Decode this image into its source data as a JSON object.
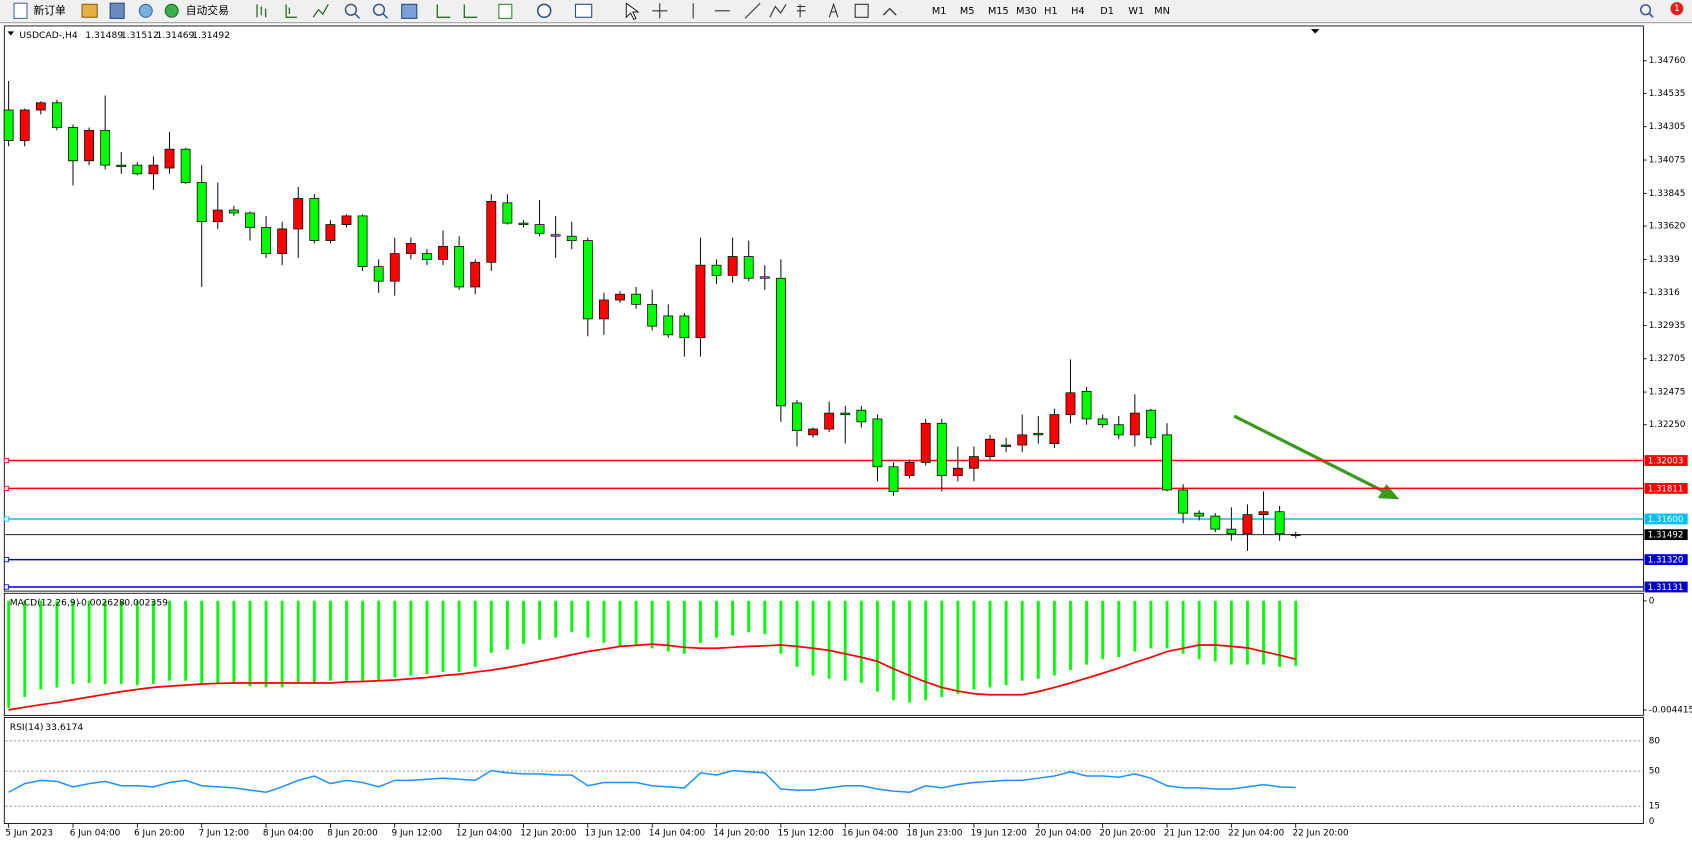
{
  "toolbar": {
    "new_order": "新订单",
    "auto_trading": "自动交易",
    "timeframes": [
      "M1",
      "M5",
      "M15",
      "M30",
      "H1",
      "H4",
      "D1",
      "W1",
      "MN"
    ],
    "alerts": "1"
  },
  "chart_data": [
    {
      "type": "candlestick",
      "symbol": "USDCAD-,H4",
      "categories": [
        "5 Jun 2023",
        null,
        null,
        null,
        "6 Jun 04:00",
        null,
        null,
        null,
        "6 Jun 20:00",
        null,
        null,
        null,
        "7 Jun 12:00",
        null,
        null,
        null,
        "8 Jun 04:00",
        null,
        null,
        null,
        "8 Jun 20:00",
        null,
        null,
        null,
        "9 Jun 12:00",
        null,
        null,
        null,
        "12 Jun 04:00",
        null,
        null,
        null,
        "12 Jun 20:00",
        null,
        null,
        null,
        "13 Jun 12:00",
        null,
        null,
        null,
        "14 Jun 04:00",
        null,
        null,
        null,
        "14 Jun 20:00",
        null,
        null,
        null,
        "15 Jun 12:00",
        null,
        null,
        null,
        "16 Jun 04:00",
        null,
        null,
        null,
        "18 Jun 23:00",
        null,
        null,
        null,
        "19 Jun 12:00",
        null,
        null,
        null,
        "20 Jun 04:00",
        null,
        null,
        null,
        "20 Jun 20:00",
        null,
        null,
        null,
        "21 Jun 12:00",
        null,
        null,
        null,
        "22 Jun 04:00",
        null,
        null,
        null,
        "22 Jun 20:00"
      ],
      "open": [
        1.3442,
        1.3421,
        1.3442,
        1.3447,
        1.343,
        1.3407,
        1.3428,
        1.3404,
        1.3404,
        1.3398,
        1.3402,
        1.3415,
        1.3392,
        1.3365,
        1.3373,
        1.3371,
        1.3361,
        1.3343,
        1.336,
        1.3381,
        1.3352,
        1.3363,
        1.3369,
        1.3334,
        1.3324,
        1.3343,
        1.3343,
        1.3339,
        1.3348,
        1.332,
        1.3337,
        1.3378,
        1.3364,
        1.3363,
        1.3356,
        1.3355,
        1.3352,
        1.3298,
        1.3311,
        1.3315,
        1.3308,
        1.33,
        1.33,
        1.3285,
        1.3335,
        1.3328,
        1.3341,
        1.3327,
        1.3326,
        1.324,
        1.3218,
        1.3222,
        1.3233,
        1.3235,
        1.3229,
        1.3196,
        1.319,
        1.3199,
        1.3226,
        1.319,
        1.3195,
        1.3203,
        1.321,
        1.3211,
        1.3219,
        1.3212,
        1.3232,
        1.3248,
        1.3229,
        1.3225,
        1.3218,
        1.3235,
        1.3218,
        1.318,
        1.3164,
        1.3162,
        1.3153,
        1.315,
        1.3163,
        1.3165,
        1.31489
      ],
      "high": [
        1.3462,
        1.3443,
        1.3448,
        1.3449,
        1.3432,
        1.343,
        1.3452,
        1.3413,
        1.3406,
        1.341,
        1.3427,
        1.3416,
        1.3404,
        1.3392,
        1.3376,
        1.3372,
        1.3369,
        1.3365,
        1.3389,
        1.3384,
        1.3366,
        1.337,
        1.337,
        1.3339,
        1.3354,
        1.3354,
        1.3346,
        1.3359,
        1.3355,
        1.3339,
        1.3384,
        1.3384,
        1.3366,
        1.338,
        1.3369,
        1.3365,
        1.3354,
        1.3316,
        1.3317,
        1.332,
        1.3318,
        1.3308,
        1.3302,
        1.3354,
        1.3339,
        1.3354,
        1.3352,
        1.3335,
        1.3339,
        1.3242,
        1.3223,
        1.3241,
        1.3238,
        1.3238,
        1.3232,
        1.3199,
        1.3201,
        1.3229,
        1.3229,
        1.321,
        1.321,
        1.3218,
        1.3216,
        1.3232,
        1.3231,
        1.3236,
        1.327,
        1.3251,
        1.3232,
        1.3231,
        1.3246,
        1.3236,
        1.3226,
        1.3184,
        1.3166,
        1.3164,
        1.3168,
        1.317,
        1.3179,
        1.3169,
        1.31512
      ],
      "low": [
        1.3417,
        1.3417,
        1.3439,
        1.3428,
        1.339,
        1.3404,
        1.3401,
        1.3398,
        1.3397,
        1.3387,
        1.3398,
        1.3391,
        1.332,
        1.336,
        1.3369,
        1.3352,
        1.334,
        1.3335,
        1.334,
        1.335,
        1.335,
        1.3361,
        1.3331,
        1.3316,
        1.3314,
        1.3339,
        1.3335,
        1.3335,
        1.3318,
        1.3315,
        1.3331,
        1.3363,
        1.3361,
        1.3355,
        1.334,
        1.3346,
        1.3286,
        1.3287,
        1.3309,
        1.3305,
        1.329,
        1.3285,
        1.3272,
        1.3272,
        1.3322,
        1.3323,
        1.3324,
        1.3318,
        1.3227,
        1.321,
        1.3216,
        1.322,
        1.3212,
        1.3223,
        1.3186,
        1.3176,
        1.3188,
        1.3197,
        1.3179,
        1.3186,
        1.3186,
        1.3201,
        1.3206,
        1.3206,
        1.3212,
        1.3209,
        1.3226,
        1.3225,
        1.3223,
        1.3215,
        1.321,
        1.3211,
        1.3179,
        1.3157,
        1.3159,
        1.3151,
        1.3145,
        1.3138,
        1.3149,
        1.3145,
        1.31469
      ],
      "close": [
        1.3421,
        1.3442,
        1.3447,
        1.343,
        1.3407,
        1.3428,
        1.3404,
        1.3403,
        1.3398,
        1.3404,
        1.3415,
        1.3392,
        1.3365,
        1.3373,
        1.3371,
        1.3361,
        1.3343,
        1.336,
        1.3381,
        1.3352,
        1.3363,
        1.3369,
        1.3334,
        1.3324,
        1.3343,
        1.335,
        1.3339,
        1.3348,
        1.332,
        1.3337,
        1.3379,
        1.3364,
        1.3363,
        1.3357,
        1.3355,
        1.3352,
        1.3298,
        1.3311,
        1.3315,
        1.3308,
        1.3293,
        1.3287,
        1.3285,
        1.3335,
        1.3328,
        1.3341,
        1.3326,
        1.3326,
        1.3238,
        1.3221,
        1.3222,
        1.3233,
        1.3232,
        1.3227,
        1.3196,
        1.3179,
        1.3199,
        1.3226,
        1.319,
        1.3195,
        1.3203,
        1.3215,
        1.3211,
        1.3218,
        1.3218,
        1.3232,
        1.3247,
        1.3229,
        1.3225,
        1.3218,
        1.3233,
        1.3216,
        1.318,
        1.3164,
        1.3162,
        1.3153,
        1.315,
        1.3163,
        1.3165,
        1.315,
        1.31492
      ],
      "up_color": "#ff0000",
      "down_color": "#00ff00",
      "ylim": [
        1.3111,
        1.3497
      ],
      "yticks": [
        {
          "value": 1.3476,
          "label": "1.34760"
        },
        1.34535,
        1.34305,
        1.34075,
        1.33845,
        {
          "value": 1.3362,
          "label": "1.33620"
        },
        1.3339,
        1.3316,
        1.32935,
        1.32705,
        1.32475,
        {
          "value": 1.3225,
          "label": "1.32250"
        }
      ],
      "levels": {
        "values": [
          1.32003,
          1.31811,
          1.316,
          1.31492,
          1.3132,
          1.31131
        ],
        "value_labels": [
          "1.32003",
          "1.31811",
          "1.31600",
          "1.31492",
          "1.31320",
          "1.31131"
        ],
        "colors": [
          "#ff0000",
          "#ff0000",
          "#00bfff",
          "#000000",
          "#0000cd",
          "#0000cd"
        ]
      }
    },
    {
      "type": "macd",
      "name": "MACD(12,26,9)",
      "histogram": {
        "color": "#00ff00",
        "values": [
          -0.00433,
          -0.00389,
          -0.00358,
          -0.0035,
          -0.00336,
          -0.00332,
          -0.00336,
          -0.00336,
          -0.00341,
          -0.00336,
          -0.00323,
          -0.00323,
          -0.00336,
          -0.00336,
          -0.00336,
          -0.00345,
          -0.0035,
          -0.0035,
          -0.00336,
          -0.00336,
          -0.00323,
          -0.00323,
          -0.00323,
          -0.00323,
          -0.0031,
          -0.00302,
          -0.00297,
          -0.00288,
          -0.00288,
          -0.00267,
          -0.0021,
          -0.00197,
          -0.00175,
          -0.00157,
          -0.00149,
          -0.00127,
          -0.00149,
          -0.0017,
          -0.00184,
          -0.00184,
          -0.00192,
          -0.00205,
          -0.00214,
          -0.0017,
          -0.00149,
          -0.0014,
          -0.00127,
          -0.00135,
          -0.00214,
          -0.00267,
          -0.00302,
          -0.00315,
          -0.00323,
          -0.00332,
          -0.00367,
          -0.00402,
          -0.00411,
          -0.00402,
          -0.00389,
          -0.00376,
          -0.00358,
          -0.0035,
          -0.00341,
          -0.00323,
          -0.00315,
          -0.00302,
          -0.0028,
          -0.00258,
          -0.00236,
          -0.00227,
          -0.00205,
          -0.00192,
          -0.00192,
          -0.00214,
          -0.00236,
          -0.00245,
          -0.00258,
          -0.00258,
          -0.00258,
          -0.00267,
          -0.002628
        ]
      },
      "signal": {
        "color": "#ff0000",
        "values": [
          -0.00441,
          -0.0043,
          -0.0042,
          -0.00411,
          -0.004,
          -0.00389,
          -0.00378,
          -0.00367,
          -0.00358,
          -0.0035,
          -0.00345,
          -0.00341,
          -0.00336,
          -0.00334,
          -0.00332,
          -0.00332,
          -0.00332,
          -0.00332,
          -0.00332,
          -0.00332,
          -0.00332,
          -0.00328,
          -0.00326,
          -0.00323,
          -0.0032,
          -0.00315,
          -0.0031,
          -0.00302,
          -0.00297,
          -0.00288,
          -0.0028,
          -0.0027,
          -0.00258,
          -0.00245,
          -0.00232,
          -0.00218,
          -0.00205,
          -0.00195,
          -0.00184,
          -0.0018,
          -0.00175,
          -0.0018,
          -0.00188,
          -0.00192,
          -0.00192,
          -0.00188,
          -0.00184,
          -0.00182,
          -0.00179,
          -0.00184,
          -0.00192,
          -0.002,
          -0.00214,
          -0.00228,
          -0.00245,
          -0.00275,
          -0.00302,
          -0.00328,
          -0.0035,
          -0.00365,
          -0.00376,
          -0.0038,
          -0.0038,
          -0.0038,
          -0.00367,
          -0.0035,
          -0.00332,
          -0.00313,
          -0.00293,
          -0.00272,
          -0.00249,
          -0.00228,
          -0.00205,
          -0.00192,
          -0.00179,
          -0.00179,
          -0.00184,
          -0.0019,
          -0.00205,
          -0.0022,
          -0.002359
        ]
      },
      "ylim": [
        -0.004415,
        0
      ],
      "yticks": [
        0,
        -0.004415
      ]
    },
    {
      "type": "rsi",
      "name": "RSI(14)",
      "color": "#1e90ff",
      "values": [
        28.9,
        37.5,
        40.7,
        39.7,
        34.3,
        37.5,
        39.7,
        35.4,
        35.4,
        34.3,
        38.6,
        40.7,
        35.4,
        34.3,
        33.2,
        31.1,
        28.9,
        34.3,
        40.7,
        45,
        37.5,
        40.7,
        38.6,
        34.3,
        40.7,
        40.7,
        41.8,
        42.9,
        41.8,
        40.7,
        50.4,
        48.2,
        47.2,
        47.2,
        46.1,
        46.1,
        35.4,
        38.6,
        38.6,
        38.6,
        35.4,
        34.3,
        33.2,
        48.2,
        46.1,
        50.4,
        49.3,
        48.2,
        32.2,
        31.1,
        31.1,
        33.2,
        35.4,
        35.4,
        32.2,
        30,
        28.9,
        35.4,
        33.2,
        36.4,
        38.6,
        39.7,
        40.7,
        40.7,
        42.9,
        45,
        49.3,
        45,
        45,
        43.9,
        47.2,
        42.9,
        35.4,
        33.2,
        33.2,
        32.2,
        32.2,
        34.3,
        36.4,
        34.3,
        33.6174
      ],
      "ylim": [
        0,
        100
      ],
      "yticks": [
        0,
        15,
        50,
        80
      ]
    }
  ]
}
